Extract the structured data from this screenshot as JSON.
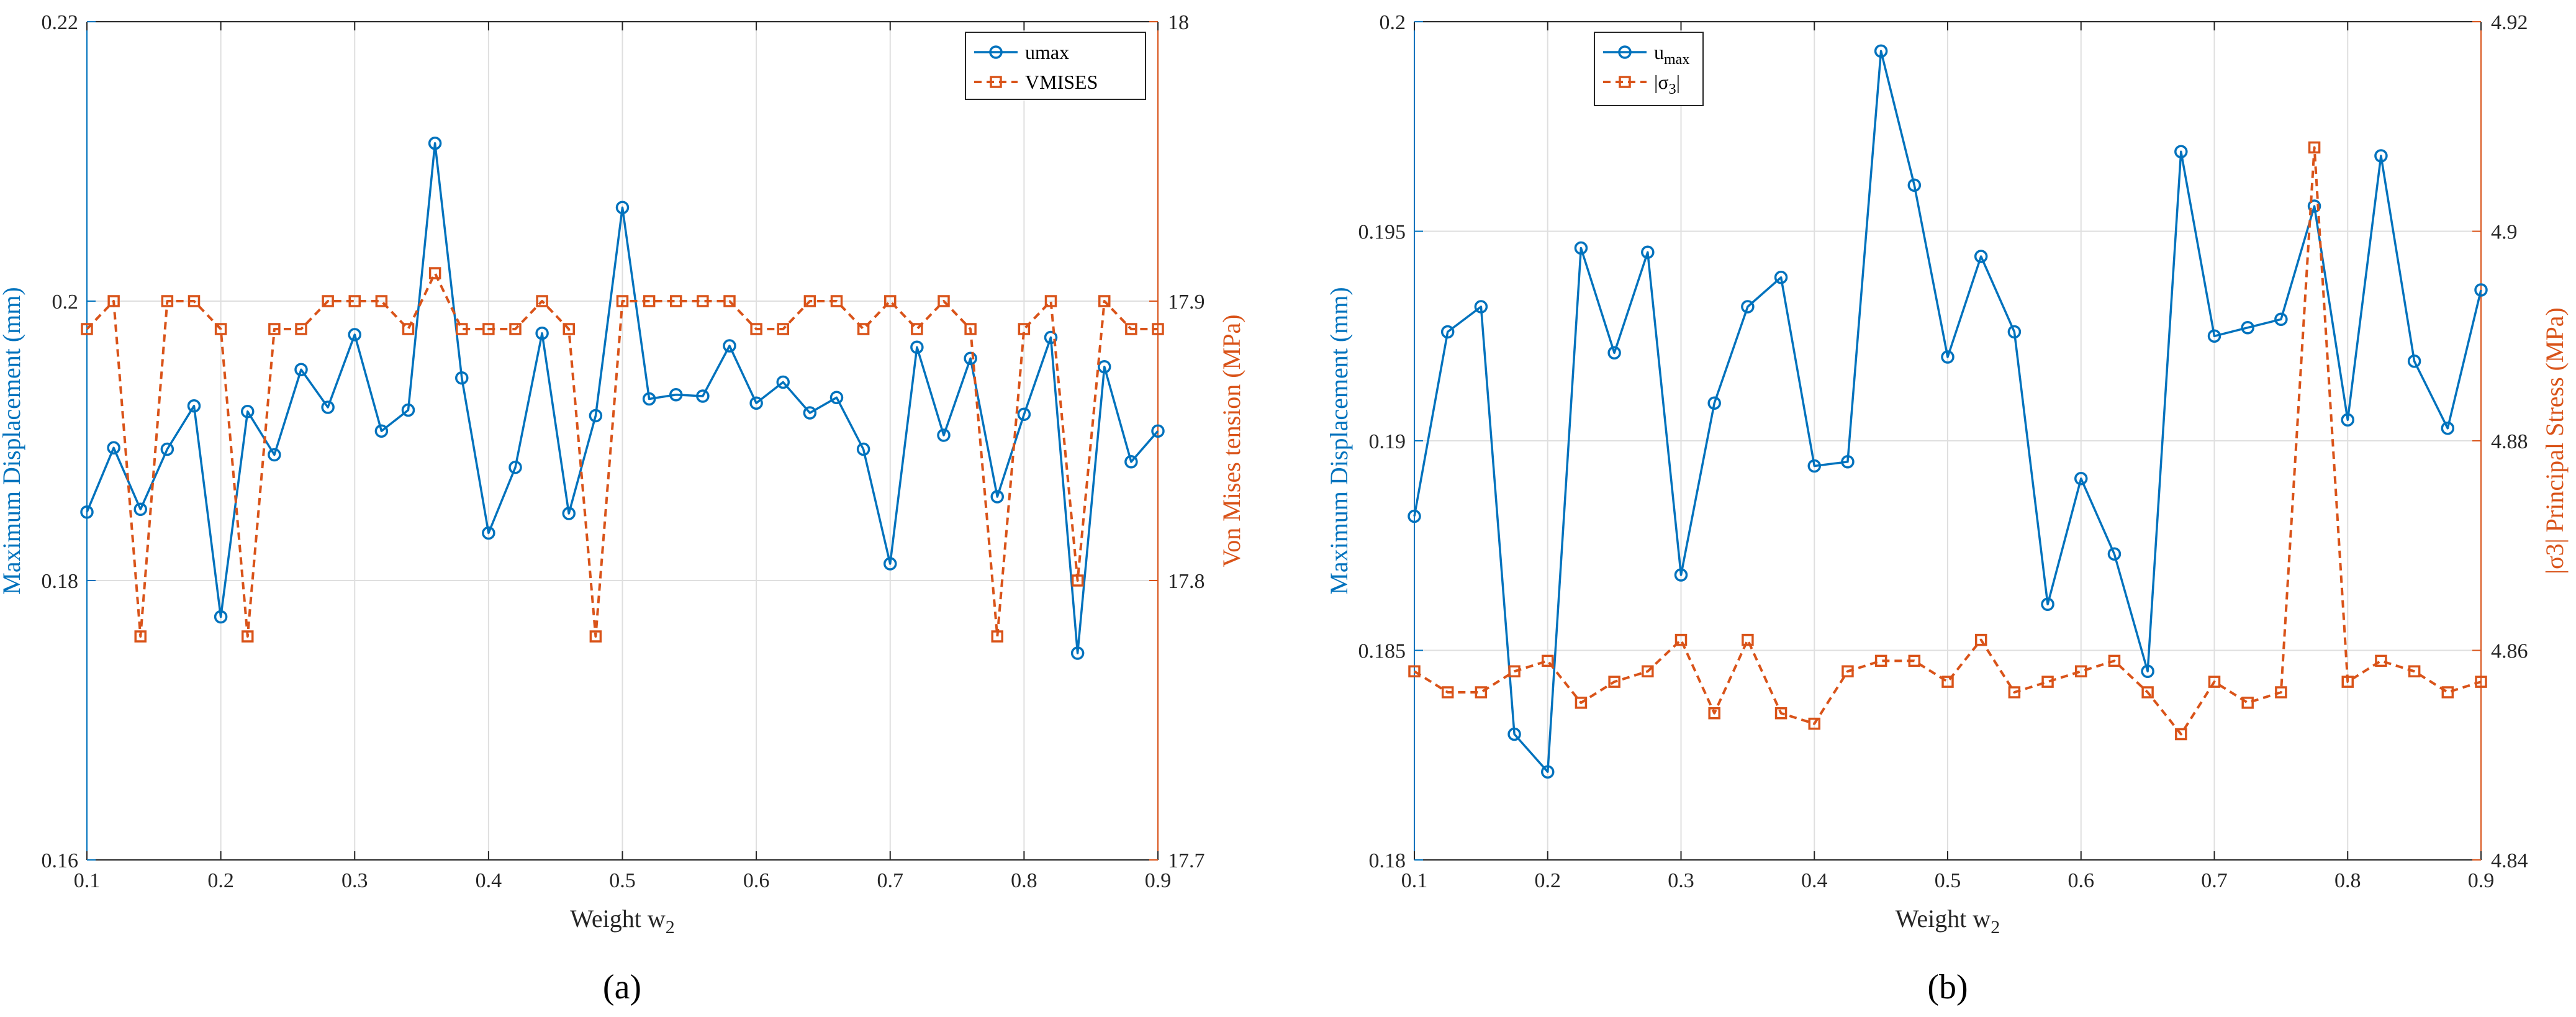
{
  "colors": {
    "series1": "#0072bd",
    "series2": "#d95319",
    "grid": "#dfdfdf",
    "text": "#262626"
  },
  "chart_data": [
    {
      "type": "line",
      "panel_label": "(a)",
      "xlabel": "Weight w",
      "xlabel_sub": "2",
      "ylabel_left": "Maximum Displacement (mm)",
      "ylabel_right": "Von Mises tension (MPa)",
      "xlim": [
        0.1,
        0.9
      ],
      "ylim_left": [
        0.16,
        0.22
      ],
      "ylim_right": [
        17.7,
        18.0
      ],
      "xticks": [
        "0.1",
        "0.2",
        "0.3",
        "0.4",
        "0.5",
        "0.6",
        "0.7",
        "0.8",
        "0.9"
      ],
      "yticks_left": [
        "0.16",
        "0.18",
        "0.2",
        "0.22"
      ],
      "yticks_right": [
        "17.7",
        "17.8",
        "17.9",
        "18"
      ],
      "grid": true,
      "legend_position": "top-right",
      "x": [
        0.1,
        0.12,
        0.14,
        0.16,
        0.18,
        0.2,
        0.22,
        0.24,
        0.26,
        0.28,
        0.3,
        0.32,
        0.34,
        0.36,
        0.38,
        0.4,
        0.42,
        0.44,
        0.46,
        0.48,
        0.5,
        0.52,
        0.54,
        0.56,
        0.58,
        0.6,
        0.62,
        0.64,
        0.66,
        0.68,
        0.7,
        0.72,
        0.74,
        0.76,
        0.78,
        0.8,
        0.82,
        0.84,
        0.86,
        0.88,
        0.9
      ],
      "series": [
        {
          "name": "umax",
          "axis": "left",
          "marker": "circle",
          "style": "solid",
          "legend_main": "umax",
          "legend_sub": "",
          "values": [
            0.1849,
            0.1895,
            0.1851,
            0.1894,
            0.1925,
            0.1774,
            0.1921,
            0.189,
            0.1951,
            0.1924,
            0.1976,
            0.1907,
            0.1922,
            0.2113,
            0.1945,
            0.1834,
            0.1881,
            0.1977,
            0.1848,
            0.1918,
            0.2067,
            0.193,
            0.1933,
            0.1932,
            0.1968,
            0.1927,
            0.1942,
            0.192,
            0.1931,
            0.1894,
            0.1812,
            0.1967,
            0.1904,
            0.1959,
            0.186,
            0.1919,
            0.1974,
            0.1748,
            0.1953,
            0.1885,
            0.1907
          ]
        },
        {
          "name": "VMISES",
          "axis": "right",
          "marker": "square",
          "style": "dashed",
          "legend_main": "VMISES",
          "legend_sub": "",
          "values": [
            17.89,
            17.9,
            17.78,
            17.9,
            17.9,
            17.89,
            17.78,
            17.89,
            17.89,
            17.9,
            17.9,
            17.9,
            17.89,
            17.91,
            17.89,
            17.89,
            17.89,
            17.9,
            17.89,
            17.78,
            17.9,
            17.9,
            17.9,
            17.9,
            17.9,
            17.89,
            17.89,
            17.9,
            17.9,
            17.89,
            17.9,
            17.89,
            17.9,
            17.89,
            17.78,
            17.89,
            17.9,
            17.8,
            17.9,
            17.89,
            17.89
          ]
        }
      ]
    },
    {
      "type": "line",
      "panel_label": "(b)",
      "xlabel": "Weight w",
      "xlabel_sub": "2",
      "ylabel_left": "Maximum Displacement (mm)",
      "ylabel_right": "|σ3| Principal Stress (MPa)",
      "xlim": [
        0.1,
        0.9
      ],
      "ylim_left": [
        0.18,
        0.2
      ],
      "ylim_right": [
        4.84,
        4.92
      ],
      "xticks": [
        "0.1",
        "0.2",
        "0.3",
        "0.4",
        "0.5",
        "0.6",
        "0.7",
        "0.8",
        "0.9"
      ],
      "yticks_left": [
        "0.18",
        "0.185",
        "0.19",
        "0.195",
        "0.2"
      ],
      "yticks_right": [
        "4.84",
        "4.86",
        "4.88",
        "4.9",
        "4.92"
      ],
      "grid": true,
      "legend_position": "top-left",
      "x": [
        0.1,
        0.125,
        0.15,
        0.175,
        0.2,
        0.225,
        0.25,
        0.275,
        0.3,
        0.325,
        0.35,
        0.375,
        0.4,
        0.425,
        0.45,
        0.475,
        0.5,
        0.525,
        0.55,
        0.575,
        0.6,
        0.625,
        0.65,
        0.675,
        0.7,
        0.725,
        0.75,
        0.775,
        0.8,
        0.825,
        0.85,
        0.875,
        0.9
      ],
      "series": [
        {
          "name": "umax",
          "axis": "left",
          "marker": "circle",
          "style": "solid",
          "legend_main": "u",
          "legend_sub": "max",
          "values": [
            0.1882,
            0.1926,
            0.1932,
            0.183,
            0.1821,
            0.1946,
            0.1921,
            0.1945,
            0.1868,
            0.1909,
            0.1932,
            0.1939,
            0.1894,
            0.1895,
            0.1993,
            0.1961,
            0.192,
            0.1944,
            0.1926,
            0.1861,
            0.1891,
            0.1873,
            0.1845,
            0.1969,
            0.1925,
            0.1927,
            0.1929,
            0.1956,
            0.1905,
            0.1968,
            0.1919,
            0.1903,
            0.1936
          ]
        },
        {
          "name": "|σ3|",
          "axis": "right",
          "marker": "square",
          "style": "dashed",
          "legend_main": "|σ",
          "legend_sub": "3",
          "legend_tail": "|",
          "values": [
            4.858,
            4.856,
            4.856,
            4.858,
            4.859,
            4.855,
            4.857,
            4.858,
            4.861,
            4.854,
            4.861,
            4.854,
            4.853,
            4.858,
            4.859,
            4.859,
            4.857,
            4.861,
            4.856,
            4.857,
            4.858,
            4.859,
            4.856,
            4.852,
            4.857,
            4.855,
            4.856,
            4.908,
            4.857,
            4.859,
            4.858,
            4.856,
            4.857
          ]
        }
      ]
    }
  ]
}
